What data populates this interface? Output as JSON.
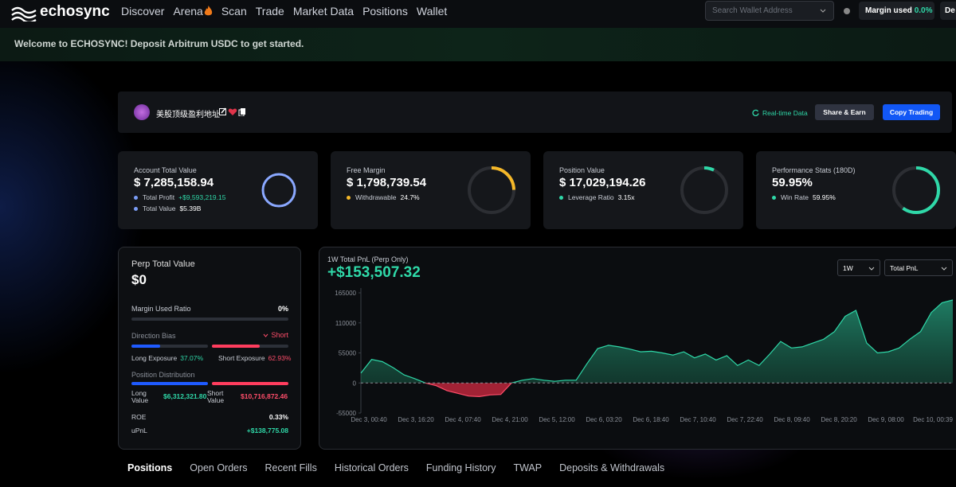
{
  "nav": {
    "logo": "echosync",
    "items": [
      "Discover",
      "Arena",
      "Scan",
      "Trade",
      "Market Data",
      "Positions",
      "Wallet"
    ],
    "search_placeholder": "Search Wallet Address",
    "margin_used_label": "Margin used",
    "margin_used_value": "0.0%",
    "truncated_button": "De"
  },
  "banner": "Welcome to ECHOSYNC! Deposit Arbitrum USDC to get started.",
  "profile": {
    "name": "美股顶级盈利地址",
    "realtime": "Real-time Data",
    "share": "Share & Earn",
    "copy": "Copy Trading"
  },
  "cards": [
    {
      "label": "Account Total Value",
      "value": "$ 7,285,158.94",
      "rows": [
        {
          "label": "Total Profit",
          "value": "+$9,593,219.15"
        },
        {
          "label": "Total Value",
          "value": "$5.39B"
        }
      ]
    },
    {
      "label": "Free Margin",
      "value": "$ 1,798,739.54",
      "rows": [
        {
          "label": "Withdrawable",
          "value": "24.7%"
        }
      ]
    },
    {
      "label": "Position Value",
      "value": "$ 17,029,194.26",
      "rows": [
        {
          "label": "Leverage Ratio",
          "value": "3.15x"
        }
      ]
    },
    {
      "label": "Performance Stats (180D)",
      "value": "59.95%",
      "rows": [
        {
          "label": "Win Rate",
          "value": "59.95%"
        }
      ]
    }
  ],
  "perp": {
    "title": "Perp Total Value",
    "value": "$0",
    "margin_label": "Margin Used Ratio",
    "margin_value": "0%",
    "bias_label": "Direction Bias",
    "bias_value": "Short",
    "long_label": "Long Exposure",
    "long_value": "37.07%",
    "short_label": "Short Exposure",
    "short_value": "62.93%",
    "dist_label": "Position Distribution",
    "long_val_label": "Long Value",
    "long_val": "$6,312,321.80",
    "short_val_label": "Short Value",
    "short_val": "$10,716,872.46",
    "roe_label": "ROE",
    "roe_value": "0.33%",
    "upnl_label": "uPnL",
    "upnl_value": "+$138,775.08"
  },
  "pnl_chart": {
    "type": "area",
    "title": "1W Total PnL (Perp Only)",
    "headline": "+$153,507.32",
    "selects": [
      "1W",
      "Total PnL"
    ],
    "x_labels": [
      "Dec 3, 00:40",
      "Dec 3, 16:20",
      "Dec 4, 07:40",
      "Dec 4, 21:00",
      "Dec 5, 12:00",
      "Dec 6, 03:20",
      "Dec 6, 18:40",
      "Dec 7, 10:40",
      "Dec 7, 22:40",
      "Dec 8, 09:40",
      "Dec 8, 20:20",
      "Dec 9, 08:00",
      "Dec 10, 00:39"
    ],
    "values": [
      18000,
      43000,
      39000,
      28000,
      15000,
      8000,
      0,
      -5000,
      -14000,
      -19000,
      -24000,
      -25000,
      -22000,
      -21000,
      0,
      5000,
      8000,
      5000,
      3000,
      5000,
      5000,
      35000,
      63000,
      69000,
      66000,
      62000,
      57000,
      58000,
      55000,
      51000,
      57000,
      46000,
      53000,
      42000,
      50000,
      32000,
      42000,
      32000,
      53000,
      76000,
      64000,
      66000,
      73000,
      80000,
      94000,
      122000,
      133000,
      73000,
      55000,
      57000,
      64000,
      80000,
      94000,
      129000,
      147000,
      152000
    ],
    "ylim": [
      -55000,
      165000
    ],
    "yticks": [
      -55000,
      0,
      55000,
      110000,
      165000
    ]
  },
  "tabs": [
    "Positions",
    "Open Orders",
    "Recent Fills",
    "Historical Orders",
    "Funding History",
    "TWAP",
    "Deposits & Withdrawals"
  ]
}
